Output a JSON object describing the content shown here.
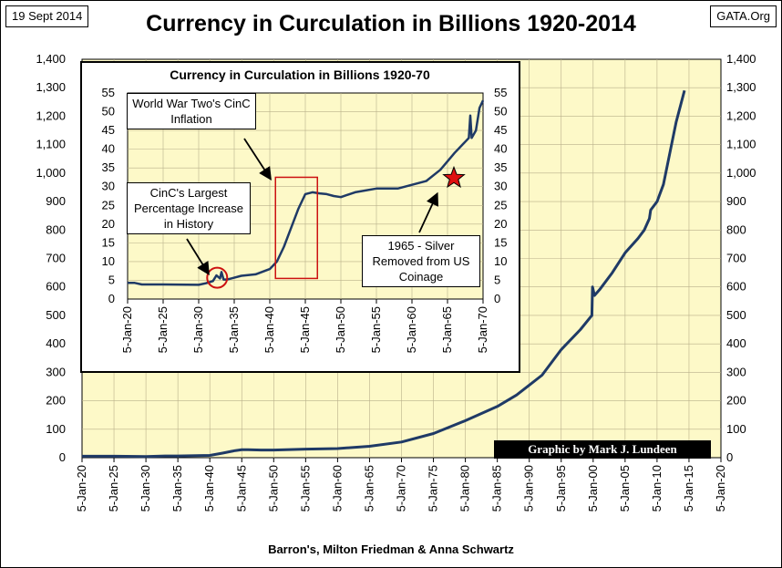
{
  "header": {
    "date": "19 Sept 2014",
    "site": "GATA.Org",
    "title": "Currency in Curculation in Billions 1920-2014"
  },
  "footer": {
    "source": "Barron's, Milton Friedman & Anna Schwartz",
    "credit": "Graphic by Mark J. Lundeen"
  },
  "colors": {
    "plot_background": "#fdf9c8",
    "line": "#1f3a66",
    "highlight": "#cc1111"
  },
  "chart_data": [
    {
      "type": "line",
      "title": "Currency in Curculation in Billions 1920-2014",
      "xlabel": "",
      "ylabel": "",
      "x_tick_labels": [
        "5-Jan-20",
        "5-Jan-25",
        "5-Jan-30",
        "5-Jan-35",
        "5-Jan-40",
        "5-Jan-45",
        "5-Jan-50",
        "5-Jan-55",
        "5-Jan-60",
        "5-Jan-65",
        "5-Jan-70",
        "5-Jan-75",
        "5-Jan-80",
        "5-Jan-85",
        "5-Jan-90",
        "5-Jan-95",
        "5-Jan-00",
        "5-Jan-05",
        "5-Jan-10",
        "5-Jan-15",
        "5-Jan-20"
      ],
      "xlim": [
        1920,
        2020
      ],
      "ylim": [
        0,
        1400
      ],
      "y_ticks": [
        "0",
        "100",
        "200",
        "300",
        "400",
        "500",
        "600",
        "700",
        "800",
        "900",
        "1,000",
        "1,100",
        "1,200",
        "1,300",
        "1,400"
      ],
      "grid": true,
      "series": [
        {
          "x": [
            1920,
            1925,
            1930,
            1933,
            1935,
            1940,
            1942,
            1944,
            1945,
            1946,
            1948,
            1950,
            1955,
            1960,
            1965,
            1970,
            1975,
            1980,
            1985,
            1988,
            1990,
            1992,
            1995,
            1998,
            1999.8,
            1999.9,
            2000.2,
            2001,
            2003,
            2005,
            2007,
            2008,
            2008.8,
            2009,
            2010,
            2011,
            2012,
            2013,
            2014.3
          ],
          "y": [
            5,
            5,
            4,
            6,
            6,
            8,
            16,
            25,
            28,
            28,
            27,
            27,
            30,
            32,
            40,
            55,
            85,
            130,
            180,
            220,
            255,
            290,
            380,
            450,
            500,
            600,
            570,
            590,
            650,
            720,
            770,
            800,
            840,
            870,
            900,
            960,
            1070,
            1180,
            1290
          ]
        }
      ]
    },
    {
      "type": "line",
      "title": "Currency in Curculation in Billions 1920-70",
      "xlabel": "",
      "ylabel": "",
      "x_tick_labels": [
        "5-Jan-20",
        "5-Jan-25",
        "5-Jan-30",
        "5-Jan-35",
        "5-Jan-40",
        "5-Jan-45",
        "5-Jan-50",
        "5-Jan-55",
        "5-Jan-60",
        "5-Jan-65",
        "5-Jan-70"
      ],
      "xlim": [
        1920,
        1970
      ],
      "ylim": [
        0,
        55
      ],
      "y_ticks": [
        "0",
        "5",
        "10",
        "15",
        "20",
        "25",
        "30",
        "35",
        "40",
        "45",
        "50",
        "55"
      ],
      "grid": true,
      "series": [
        {
          "x": [
            1920,
            1921,
            1922,
            1925,
            1930,
            1931,
            1932,
            1932.5,
            1933,
            1933.2,
            1933.5,
            1934,
            1935,
            1936,
            1938,
            1940,
            1941,
            1942,
            1943,
            1944,
            1945,
            1946,
            1947,
            1948,
            1949,
            1950,
            1952,
            1955,
            1958,
            1960,
            1962,
            1964,
            1966,
            1967,
            1968,
            1968.2,
            1968.4,
            1969,
            1969.5,
            1970
          ],
          "y": [
            4.3,
            4.3,
            3.9,
            3.9,
            3.8,
            4.2,
            4.8,
            6.3,
            5.5,
            7.2,
            5.2,
            5.2,
            5.7,
            6.2,
            6.6,
            8,
            10,
            14,
            19,
            24,
            28,
            28.5,
            28.2,
            28,
            27.5,
            27.2,
            28.5,
            29.5,
            29.5,
            30.5,
            31.5,
            34.5,
            39,
            41,
            43,
            49,
            43,
            45,
            51,
            53
          ]
        }
      ],
      "annotations": [
        "World War Two's CinC Inflation",
        "CinC's Largest Percentage Increase in History",
        "1965 - Silver Removed from US Coinage"
      ]
    }
  ]
}
